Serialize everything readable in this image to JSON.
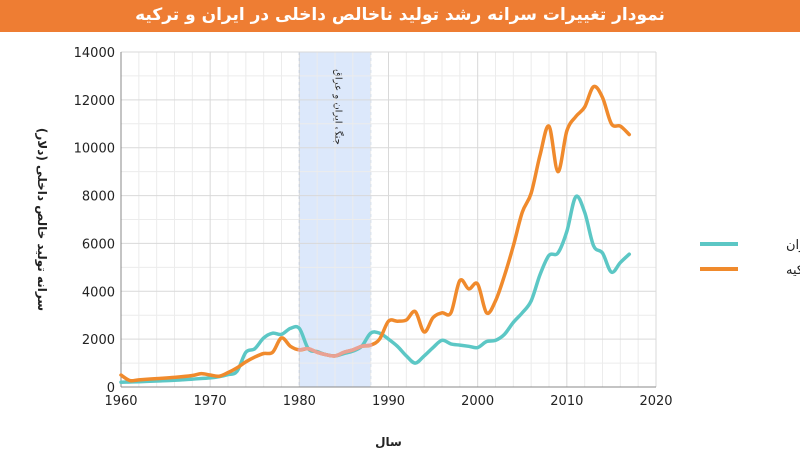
{
  "title": "نمودار تغییرات سرانه رشد تولید ناخالص داخلی در ایران و ترکیه",
  "colors": {
    "title_bar": "#ee7d33",
    "iran": "#5cc7c5",
    "turkey": "#f08a2c",
    "iran_shaded": "#e8a3a0",
    "war_band": "#dce8fb",
    "grid": "#d9d9d9"
  },
  "chart_data": {
    "type": "line",
    "xlabel": "سال",
    "ylabel": "سرانه تولید خالص داخلی (دلار)",
    "xlim": [
      1960,
      2020
    ],
    "ylim": [
      0,
      14000
    ],
    "x_ticks": [
      1960,
      1970,
      1980,
      1990,
      2000,
      2010,
      2020
    ],
    "y_ticks": [
      0,
      2000,
      4000,
      6000,
      8000,
      10000,
      12000,
      14000
    ],
    "grid": true,
    "legend": "right",
    "annotations": [
      {
        "type": "band",
        "x_start": 1980,
        "x_end": 1988,
        "label": "جنگ ایران و عراق"
      }
    ],
    "series": [
      {
        "name": "ایران",
        "color": "#5cc7c5",
        "x": [
          1960,
          1962,
          1964,
          1966,
          1968,
          1970,
          1971,
          1972,
          1973,
          1974,
          1975,
          1976,
          1977,
          1978,
          1979,
          1980,
          1981,
          1982,
          1983,
          1984,
          1985,
          1986,
          1987,
          1988,
          1989,
          1990,
          1991,
          1992,
          1993,
          1994,
          1995,
          1996,
          1997,
          1998,
          1999,
          2000,
          2001,
          2002,
          2003,
          2004,
          2005,
          2006,
          2007,
          2008,
          2009,
          2010,
          2011,
          2012,
          2013,
          2014,
          2015,
          2016,
          2017
        ],
        "values": [
          200,
          220,
          250,
          280,
          330,
          380,
          430,
          520,
          650,
          1450,
          1600,
          2050,
          2250,
          2200,
          2450,
          2450,
          1600,
          1480,
          1350,
          1300,
          1400,
          1500,
          1700,
          2250,
          2250,
          2000,
          1700,
          1300,
          1000,
          1300,
          1650,
          1950,
          1800,
          1750,
          1700,
          1650,
          1900,
          1950,
          2200,
          2700,
          3100,
          3600,
          4700,
          5500,
          5600,
          6500,
          7950,
          7300,
          5900,
          5600,
          4800,
          5200,
          5550
        ]
      },
      {
        "name": "ترکیه",
        "color": "#f08a2c",
        "x": [
          1960,
          1961,
          1962,
          1964,
          1966,
          1968,
          1969,
          1970,
          1971,
          1972,
          1973,
          1974,
          1975,
          1976,
          1977,
          1978,
          1979,
          1980,
          1981,
          1982,
          1983,
          1984,
          1985,
          1986,
          1987,
          1988,
          1989,
          1990,
          1991,
          1992,
          1993,
          1994,
          1995,
          1996,
          1997,
          1998,
          1999,
          2000,
          2001,
          2002,
          2003,
          2004,
          2005,
          2006,
          2007,
          2008,
          2009,
          2010,
          2011,
          2012,
          2013,
          2014,
          2015,
          2016,
          2017
        ],
        "values": [
          500,
          270,
          300,
          350,
          400,
          480,
          560,
          500,
          450,
          600,
          800,
          1050,
          1250,
          1400,
          1450,
          2050,
          1700,
          1550,
          1600,
          1450,
          1350,
          1300,
          1450,
          1550,
          1700,
          1750,
          2000,
          2750,
          2750,
          2800,
          3150,
          2300,
          2900,
          3100,
          3100,
          4450,
          4100,
          4300,
          3100,
          3600,
          4650,
          5900,
          7300,
          8100,
          9700,
          10900,
          9000,
          10700,
          11300,
          11700,
          12550,
          12100,
          11000,
          10900,
          10550
        ]
      }
    ]
  }
}
